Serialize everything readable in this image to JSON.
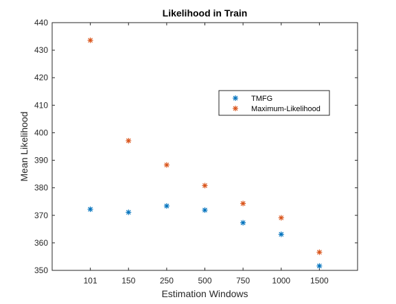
{
  "chart_data": {
    "type": "scatter",
    "title": "Likelihood in Train",
    "xlabel": "Estimation Windows",
    "ylabel": "Mean Likelihood",
    "categories": [
      "101",
      "150",
      "250",
      "500",
      "750",
      "1000",
      "1500"
    ],
    "ylim": [
      350,
      440
    ],
    "yticks": [
      350,
      360,
      370,
      380,
      390,
      400,
      410,
      420,
      430,
      440
    ],
    "marker": "asterisk",
    "grid": false,
    "legend_position": "upper-right-inside",
    "series": [
      {
        "name": "TMFG",
        "color": "#0072BD",
        "values": [
          372.2,
          371.1,
          373.4,
          371.9,
          367.3,
          363.1,
          351.6
        ]
      },
      {
        "name": "Maximum-Likelihood",
        "color": "#D95319",
        "values": [
          433.6,
          397.1,
          388.3,
          380.8,
          374.3,
          369.1,
          356.6
        ]
      }
    ]
  }
}
